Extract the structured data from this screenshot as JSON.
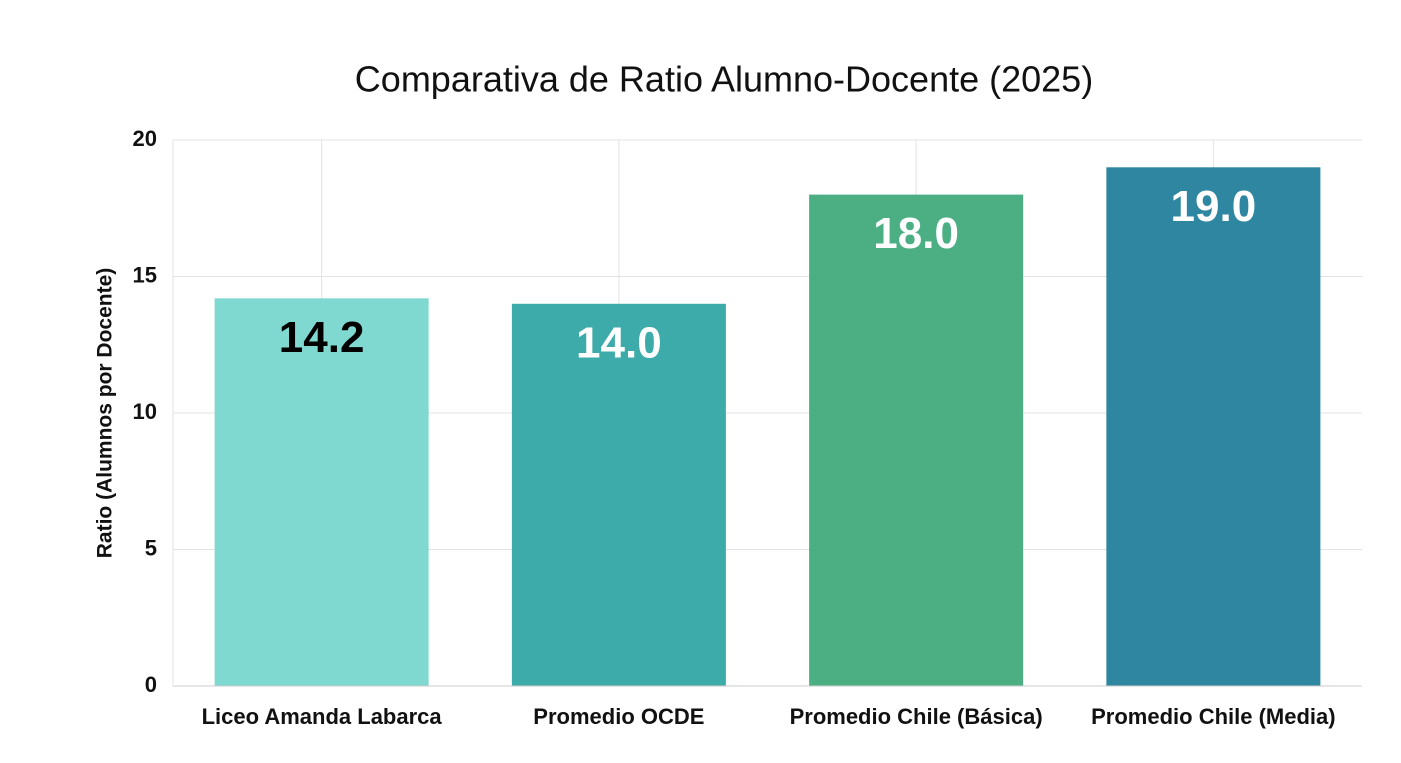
{
  "chart_data": {
    "type": "bar",
    "title": "Comparativa de Ratio Alumno-Docente (2025)",
    "y_label": "Ratio (Alumnos por Docente)",
    "categories": [
      "Liceo Amanda Labarca",
      "Promedio OCDE",
      "Promedio Chile (Básica)",
      "Promedio Chile (Media)"
    ],
    "values": [
      14.2,
      14,
      18,
      19
    ],
    "value_labels": [
      "14.2",
      "14.0",
      "18.0",
      "19.0"
    ],
    "colors": [
      "#7fd9d0",
      "#3eabab",
      "#4caf84",
      "#2f86a0"
    ],
    "label_colors": [
      "#000000",
      "#ffffff",
      "#ffffff",
      "#ffffff"
    ],
    "ylim": [
      0,
      20
    ],
    "yticks": [
      0,
      5,
      10,
      15,
      20
    ],
    "grid": true
  }
}
